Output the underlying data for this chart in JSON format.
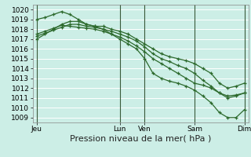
{
  "bg_color": "#cceee6",
  "grid_color": "#b8ddd6",
  "line_color": "#2d6a2d",
  "ylim": [
    1008.5,
    1020.5
  ],
  "yticks": [
    1009,
    1010,
    1011,
    1012,
    1013,
    1014,
    1015,
    1016,
    1017,
    1018,
    1019,
    1020
  ],
  "xlabel": "Pression niveau de la mer( hPa )",
  "xlabel_fontsize": 8,
  "tick_fontsize": 6.5,
  "day_labels": [
    "Jeu",
    "",
    "Lun",
    "Ven",
    "",
    "Sam",
    "",
    "Dim"
  ],
  "day_positions": [
    0,
    8,
    10,
    13,
    16,
    19,
    22,
    25
  ],
  "day_line_positions": [
    0,
    10,
    13,
    19,
    25
  ],
  "n_points": 26,
  "series": [
    [
      1019.0,
      1019.2,
      1019.5,
      1019.8,
      1019.5,
      1019.0,
      1018.5,
      1018.3,
      1018.0,
      1017.5,
      1017.0,
      1016.5,
      1016.0,
      1015.0,
      1013.5,
      1013.0,
      1012.7,
      1012.5,
      1012.2,
      1011.8,
      1011.2,
      1010.5,
      1009.5,
      1009.0,
      1009.0,
      1009.8
    ],
    [
      1017.0,
      1017.5,
      1018.0,
      1018.5,
      1018.8,
      1018.8,
      1018.5,
      1018.3,
      1018.3,
      1018.0,
      1017.8,
      1017.5,
      1017.0,
      1016.5,
      1016.0,
      1015.5,
      1015.2,
      1015.0,
      1014.8,
      1014.5,
      1014.0,
      1013.5,
      1012.5,
      1012.0,
      1012.2,
      1012.5
    ],
    [
      1017.3,
      1017.6,
      1017.9,
      1018.2,
      1018.5,
      1018.5,
      1018.3,
      1018.2,
      1018.0,
      1017.8,
      1017.5,
      1017.2,
      1016.8,
      1016.2,
      1015.5,
      1015.0,
      1014.7,
      1014.3,
      1014.0,
      1013.5,
      1012.8,
      1012.2,
      1011.5,
      1011.0,
      1011.2,
      1011.5
    ],
    [
      1017.5,
      1017.8,
      1018.1,
      1018.4,
      1018.3,
      1018.2,
      1018.1,
      1018.0,
      1017.8,
      1017.5,
      1017.2,
      1016.8,
      1016.3,
      1015.7,
      1015.0,
      1014.5,
      1014.0,
      1013.5,
      1013.0,
      1012.5,
      1012.3,
      1012.0,
      1011.5,
      1011.2,
      1011.3,
      1011.5
    ]
  ]
}
